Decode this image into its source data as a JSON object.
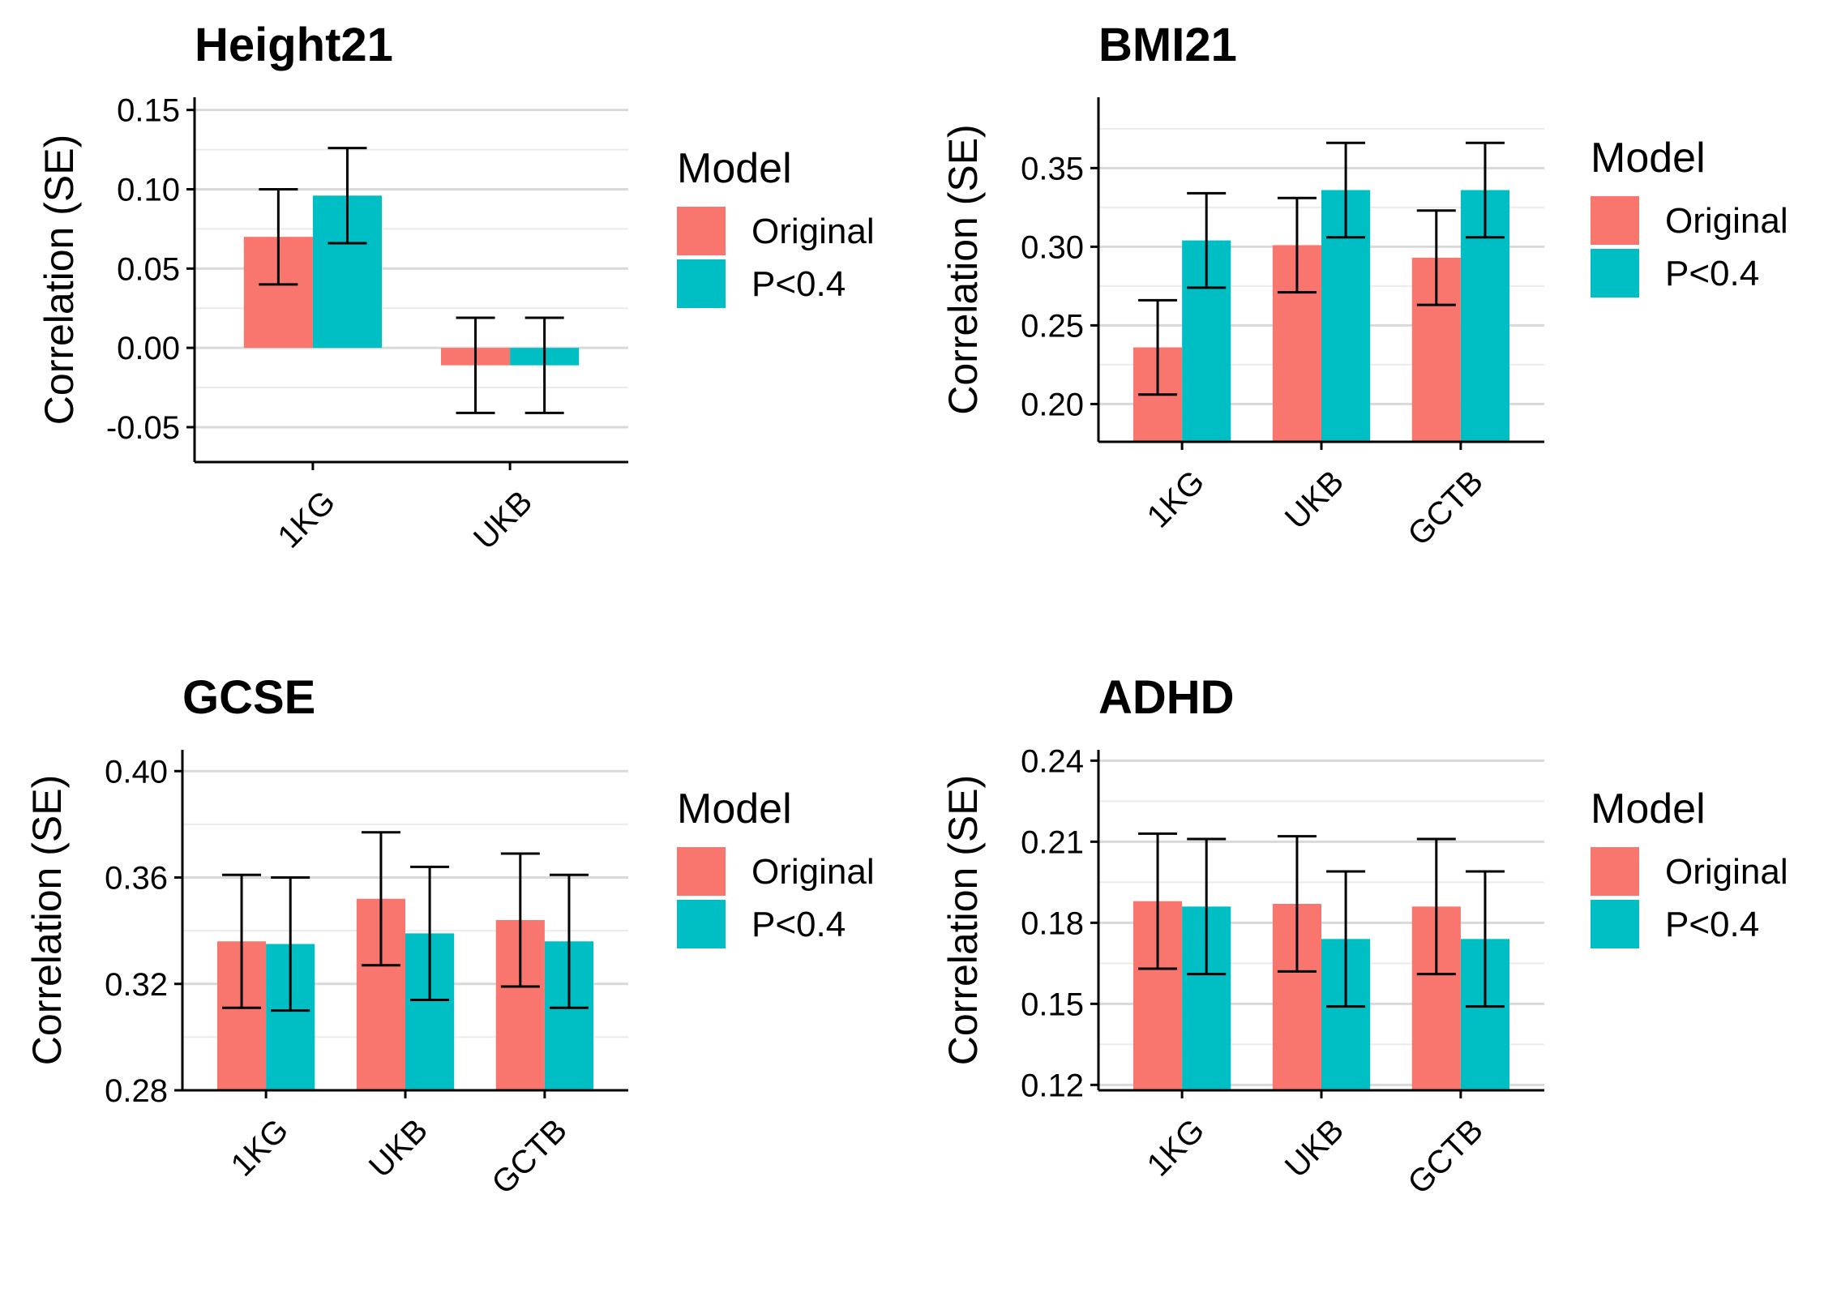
{
  "legend": {
    "title": "Model",
    "entries": [
      {
        "label": "Original",
        "color": "#F8766D"
      },
      {
        "label": "P<0.4",
        "color": "#00BFC4"
      }
    ]
  },
  "chart_data": [
    {
      "type": "bar",
      "title": "Height21",
      "ylabel": "Correlation (SE)",
      "xlabel": "",
      "categories": [
        "1KG",
        "UKB"
      ],
      "ylim": [
        -0.072,
        0.158
      ],
      "yticks": [
        "-0.05",
        "0.00",
        "0.05",
        "0.10",
        "0.15"
      ],
      "grid": true,
      "legend_position": "right",
      "series": [
        {
          "name": "Original",
          "values": [
            0.07,
            -0.011
          ],
          "se": [
            0.03,
            0.03
          ]
        },
        {
          "name": "P<0.4",
          "values": [
            0.096,
            -0.011
          ],
          "se": [
            0.03,
            0.03
          ]
        }
      ]
    },
    {
      "type": "bar",
      "title": "BMI21",
      "ylabel": "Correlation (SE)",
      "xlabel": "",
      "categories": [
        "1KG",
        "UKB",
        "GCTB"
      ],
      "ylim": [
        0.176,
        0.395
      ],
      "yticks": [
        "0.20",
        "0.25",
        "0.30",
        "0.35"
      ],
      "grid": true,
      "legend_position": "right",
      "series": [
        {
          "name": "Original",
          "values": [
            0.236,
            0.301,
            0.293
          ],
          "se": [
            0.03,
            0.03,
            0.03
          ]
        },
        {
          "name": "P<0.4",
          "values": [
            0.304,
            0.336,
            0.336
          ],
          "se": [
            0.03,
            0.03,
            0.03
          ]
        }
      ]
    },
    {
      "type": "bar",
      "title": "GCSE",
      "ylabel": "Correlation (SE)",
      "xlabel": "",
      "categories": [
        "1KG",
        "UKB",
        "GCTB"
      ],
      "ylim": [
        0.28,
        0.408
      ],
      "yticks": [
        "0.28",
        "0.32",
        "0.36",
        "0.40"
      ],
      "grid": true,
      "legend_position": "right",
      "series": [
        {
          "name": "Original",
          "values": [
            0.336,
            0.352,
            0.344
          ],
          "se": [
            0.025,
            0.025,
            0.025
          ]
        },
        {
          "name": "P<0.4",
          "values": [
            0.335,
            0.339,
            0.336
          ],
          "se": [
            0.025,
            0.025,
            0.025
          ]
        }
      ]
    },
    {
      "type": "bar",
      "title": "ADHD",
      "ylabel": "Correlation (SE)",
      "xlabel": "",
      "categories": [
        "1KG",
        "UKB",
        "GCTB"
      ],
      "ylim": [
        0.118,
        0.244
      ],
      "yticks": [
        "0.12",
        "0.15",
        "0.18",
        "0.21",
        "0.24"
      ],
      "grid": true,
      "legend_position": "right",
      "series": [
        {
          "name": "Original",
          "values": [
            0.188,
            0.187,
            0.186
          ],
          "se": [
            0.025,
            0.025,
            0.025
          ]
        },
        {
          "name": "P<0.4",
          "values": [
            0.186,
            0.174,
            0.174
          ],
          "se": [
            0.025,
            0.025,
            0.025
          ]
        }
      ]
    }
  ]
}
